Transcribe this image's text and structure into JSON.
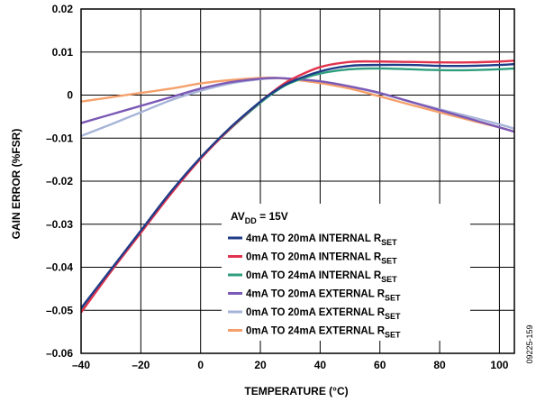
{
  "chart_data": {
    "type": "line",
    "xlabel": "TEMPERATURE (°C)",
    "ylabel": "GAIN ERROR (%FSR)",
    "xlim": [
      -40,
      105
    ],
    "ylim": [
      -0.06,
      0.02
    ],
    "x_ticks": [
      "–40",
      "–20",
      "0",
      "20",
      "40",
      "60",
      "80",
      "100"
    ],
    "x_tick_values": [
      -40,
      -20,
      0,
      20,
      40,
      60,
      80,
      100
    ],
    "y_ticks": [
      "0.02",
      "0.01",
      "0",
      "–0.01",
      "–0.02",
      "–0.03",
      "–0.04",
      "–0.05",
      "–0.06"
    ],
    "y_tick_values": [
      0.02,
      0.01,
      0,
      -0.01,
      -0.02,
      -0.03,
      -0.04,
      -0.05,
      -0.06
    ],
    "grid": true,
    "legend_position": "bottom-right",
    "legend_heading": {
      "main": "AV",
      "sub": "DD",
      "suffix": " = 15V"
    },
    "series": [
      {
        "name": "4mA TO 20mA INTERNAL R",
        "name_sub": "SET",
        "color": "#1f3c88",
        "x": [
          -40,
          -30,
          -20,
          -10,
          0,
          10,
          20,
          25,
          30,
          40,
          50,
          60,
          70,
          80,
          90,
          100,
          105
        ],
        "values": [
          -0.0495,
          -0.0405,
          -0.0315,
          -0.0225,
          -0.0145,
          -0.0075,
          -0.0015,
          0.001,
          0.003,
          0.0055,
          0.0068,
          0.007,
          0.007,
          0.0068,
          0.0068,
          0.007,
          0.0072
        ]
      },
      {
        "name": "0mA TO 20mA INTERNAL R",
        "name_sub": "SET",
        "color": "#e0334e",
        "x": [
          -40,
          -30,
          -20,
          -10,
          0,
          10,
          20,
          25,
          30,
          40,
          50,
          60,
          70,
          80,
          90,
          100,
          105
        ],
        "values": [
          -0.0505,
          -0.041,
          -0.032,
          -0.023,
          -0.0148,
          -0.0077,
          -0.0015,
          0.0012,
          0.0035,
          0.0065,
          0.0077,
          0.0078,
          0.0077,
          0.0076,
          0.0076,
          0.0078,
          0.008
        ]
      },
      {
        "name": "0mA TO 24mA INTERNAL R",
        "name_sub": "SET",
        "color": "#2f9e7e",
        "x": [
          -40,
          -30,
          -20,
          -10,
          0,
          10,
          20,
          25,
          30,
          40,
          50,
          60,
          70,
          80,
          90,
          100,
          105
        ],
        "values": [
          -0.05,
          -0.0408,
          -0.0318,
          -0.0228,
          -0.0147,
          -0.0078,
          -0.0018,
          0.0008,
          0.0028,
          0.005,
          0.006,
          0.0062,
          0.006,
          0.0058,
          0.0058,
          0.006,
          0.0062
        ]
      },
      {
        "name": "4mA TO 20mA EXTERNAL R",
        "name_sub": "SET",
        "color": "#7b59b6",
        "x": [
          -40,
          -30,
          -20,
          -10,
          0,
          10,
          20,
          25,
          30,
          40,
          50,
          60,
          70,
          80,
          90,
          100,
          105
        ],
        "values": [
          -0.0065,
          -0.0045,
          -0.0025,
          -0.0005,
          0.0015,
          0.003,
          0.0038,
          0.004,
          0.0038,
          0.0032,
          0.002,
          0.0005,
          -0.0015,
          -0.0035,
          -0.0055,
          -0.0075,
          -0.0085
        ]
      },
      {
        "name": "0mA TO 20mA EXTERNAL R",
        "name_sub": "SET",
        "color": "#a7b4d8",
        "x": [
          -40,
          -30,
          -20,
          -10,
          0,
          10,
          20,
          25,
          30,
          40,
          50,
          60,
          70,
          80,
          90,
          100,
          105
        ],
        "values": [
          -0.0095,
          -0.0068,
          -0.004,
          -0.0012,
          0.001,
          0.0027,
          0.0037,
          0.0039,
          0.0038,
          0.0032,
          0.002,
          0.0004,
          -0.0015,
          -0.0033,
          -0.005,
          -0.0068,
          -0.0078
        ]
      },
      {
        "name": "0mA TO 24mA EXTERNAL R",
        "name_sub": "SET",
        "color": "#f5a06b",
        "x": [
          -40,
          -30,
          -20,
          -10,
          0,
          10,
          20,
          25,
          30,
          40,
          50,
          60,
          70,
          80,
          90,
          100,
          105
        ],
        "values": [
          -0.0015,
          -0.0005,
          0.0005,
          0.0015,
          0.0027,
          0.0035,
          0.004,
          0.004,
          0.0037,
          0.0028,
          0.0015,
          -0.0003,
          -0.0022,
          -0.004,
          -0.0058,
          -0.0075,
          -0.0085
        ]
      }
    ]
  },
  "figure_code": "09225-159"
}
